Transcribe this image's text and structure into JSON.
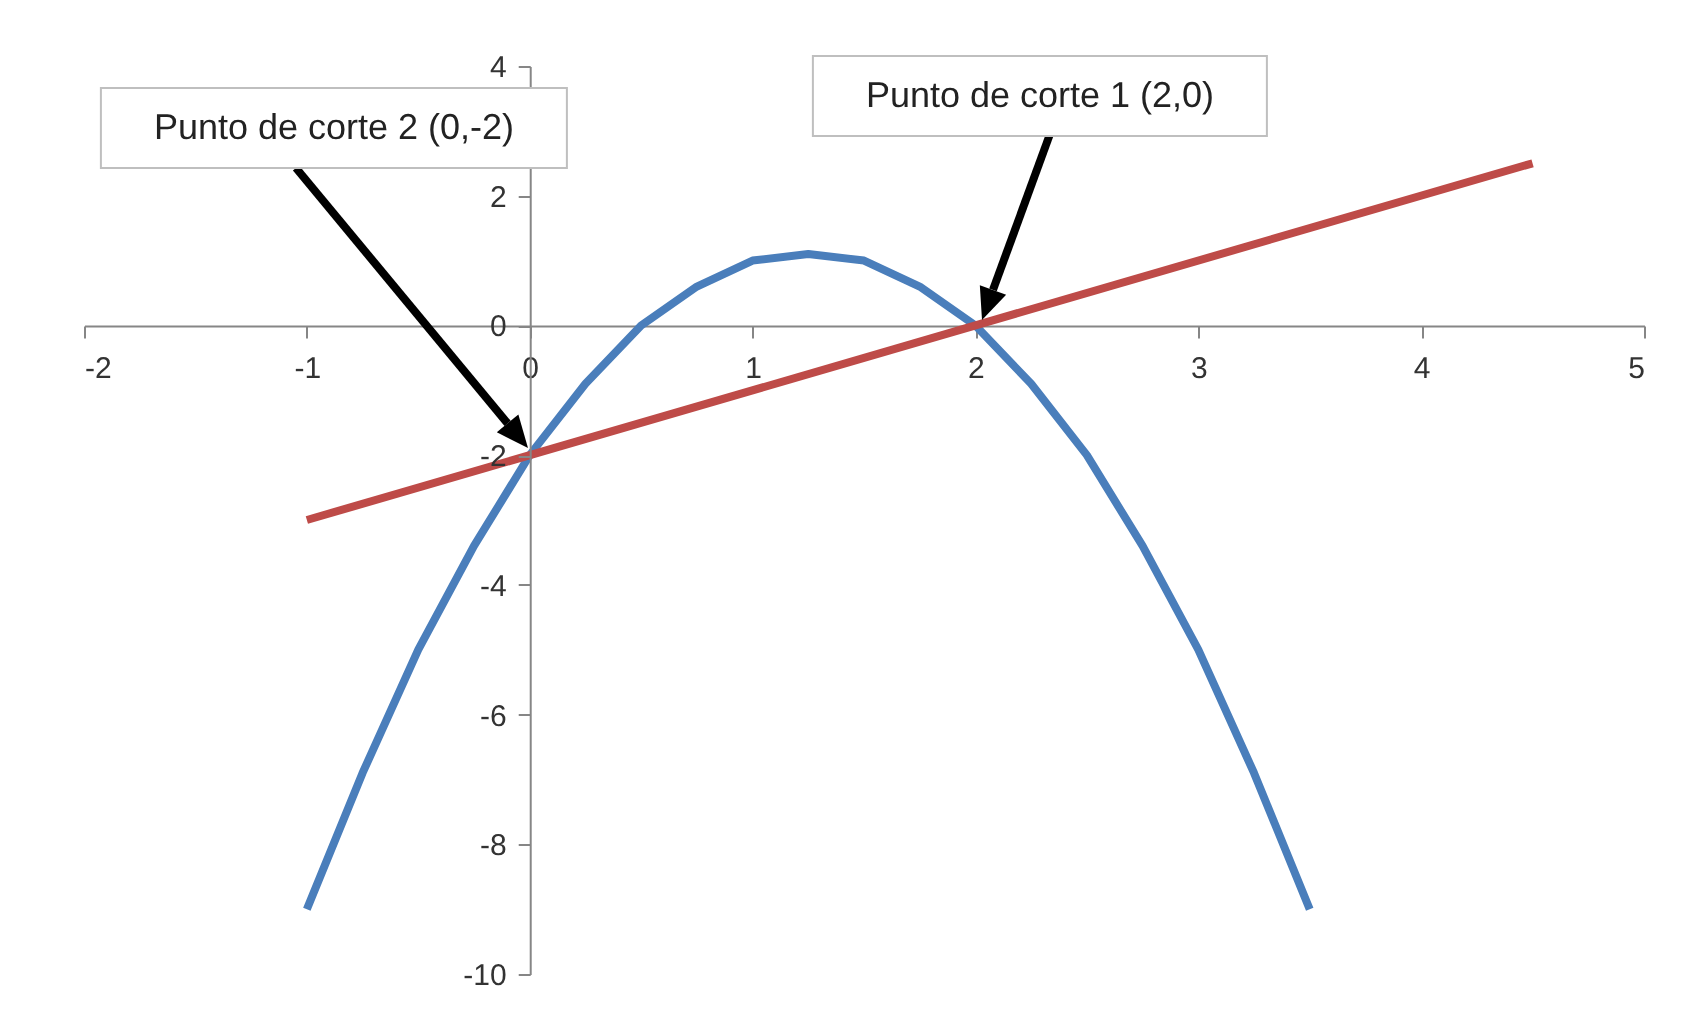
{
  "chart_data": {
    "type": "line",
    "xlim": [
      -2,
      5
    ],
    "ylim": [
      -10,
      4
    ],
    "xticks": [
      -2,
      -1,
      0,
      1,
      2,
      3,
      4,
      5
    ],
    "yticks": [
      -10,
      -8,
      -6,
      -4,
      -2,
      0,
      2,
      4
    ],
    "grid": false,
    "series": [
      {
        "color": "#4a7ebb",
        "x": [
          -1,
          -0.75,
          -0.5,
          -0.25,
          0,
          0.25,
          0.5,
          0.75,
          1,
          1.25,
          1.5,
          1.75,
          2,
          2.25,
          2.5,
          2.75,
          3,
          3.25,
          3.5
        ],
        "values": [
          -9,
          -6.9,
          -5,
          -3.4,
          -2,
          -0.9,
          0,
          0.6,
          1,
          1.1,
          1,
          0.6,
          0,
          -0.9,
          -2,
          -3.4,
          -5,
          -6.9,
          -9
        ]
      },
      {
        "color": "#be4b48",
        "x": [
          -1,
          4.5
        ],
        "values": [
          -3,
          2.5
        ]
      }
    ],
    "annotations": [
      "Punto de corte 1 (2,0)",
      "Punto de corte 2 (0,-2)"
    ]
  }
}
